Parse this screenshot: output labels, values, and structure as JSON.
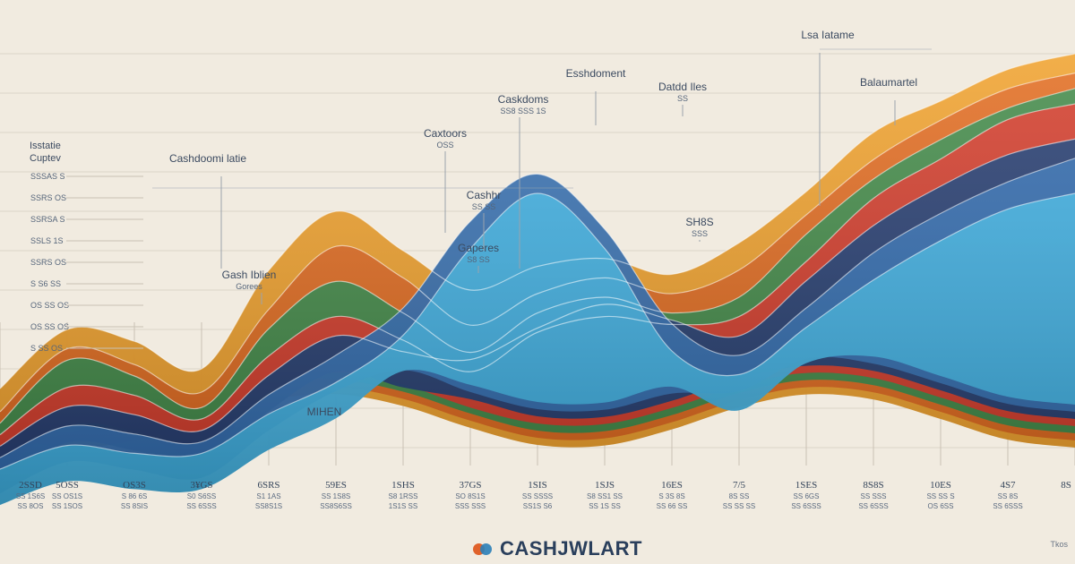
{
  "brand": {
    "name": "CASHJWLART",
    "accent_orange": "#e0622b",
    "accent_blue": "#2b7fb8"
  },
  "corner_note": "Tkos",
  "colors": {
    "background": "#f1ebe0",
    "orange": "#f0a02b",
    "orange_deep": "#e06b22",
    "green": "#3f8a4a",
    "red": "#d43a2a",
    "navy": "#1f3b6e",
    "blue": "#2e67a8",
    "sky": "#3aa6d6"
  },
  "left_labels": {
    "heading": "Isstatie",
    "subheading": "Cuptev",
    "rows": [
      "SSSAS S",
      "SSRS OS",
      "SSRSA S",
      "SSLS 1S",
      "SSRS OS",
      "S S6 SS",
      "OS SS OS",
      "OS SS OS",
      "S SS OS"
    ]
  },
  "annotations": [
    {
      "title": "Cashdoomi latie",
      "sub": ""
    },
    {
      "title": "Gash Iblien",
      "sub": "Gorees"
    },
    {
      "title": "Caskdoms",
      "sub": "SS8 SSS 1S"
    },
    {
      "title": "Caxtoors",
      "sub": "OSS"
    },
    {
      "title": "Cashhr",
      "sub": "SS SS"
    },
    {
      "title": "Gaperes",
      "sub": "S8 SS"
    },
    {
      "title": "Esshdoment",
      "sub": ""
    },
    {
      "title": "Datdd Iles",
      "sub": "SS"
    },
    {
      "title": "SH8S",
      "sub": "SSS"
    },
    {
      "title": "Lsa Iatame",
      "sub": ""
    },
    {
      "title": "Balaumartel",
      "sub": ""
    },
    {
      "title": "MIHEN",
      "sub": ""
    }
  ],
  "chart_data": {
    "type": "area",
    "title": "",
    "xlabel": "",
    "ylabel": "",
    "categories": [
      "2SSD",
      "5OSS",
      "OS3S",
      "3¥GS",
      "6SRS",
      "59ES",
      "1SHS",
      "37GS",
      "1SIS",
      "1SJS",
      "16ES",
      "7/5",
      "1SES",
      "8S8S",
      "10ES",
      "4S7",
      "8S"
    ],
    "category_sub1": [
      "SS 1S6S",
      "SS OS1S",
      "S 86 6S",
      "S0 S6SS",
      "S1 1AS",
      "SS 1S8S",
      "S8 1RSS",
      "SO 8S1S",
      "SS SSSS",
      "S8 SS1 SS",
      "S 3S 8S",
      "8S SS",
      "SS 6GS",
      "SS SSS",
      "SS SS S",
      "SS 8S",
      ""
    ],
    "category_sub2": [
      "SS 8OS",
      "SS 1SOS",
      "SS 8SIS",
      "SS 6SSS",
      "SS8S1S",
      "SS8S6SS",
      "1S1S SS",
      "SSS SSS",
      "SS1S S6",
      "SS 1S SS",
      "SS 66 SS",
      "SS SS SS",
      "SS 6SSS",
      "SS 6SSS",
      "OS 6SS",
      "SS 6SSS",
      ""
    ],
    "series": [
      {
        "name": "",
        "color": "#f0a02b",
        "values": [
          15,
          30,
          27,
          20,
          45,
          60,
          50,
          40,
          46,
          48,
          44,
          52,
          65,
          80,
          88,
          96,
          100
        ]
      },
      {
        "name": "",
        "color": "#e06b22",
        "values": [
          10,
          26,
          22,
          15,
          36,
          52,
          44,
          32,
          40,
          44,
          40,
          46,
          60,
          74,
          84,
          92,
          96
        ]
      },
      {
        "name": "",
        "color": "#3f8a4a",
        "values": [
          8,
          24,
          20,
          12,
          32,
          44,
          36,
          26,
          36,
          40,
          36,
          40,
          56,
          70,
          80,
          88,
          93
        ]
      },
      {
        "name": "",
        "color": "#d43a2a",
        "values": [
          6,
          18,
          16,
          10,
          26,
          36,
          30,
          22,
          32,
          36,
          34,
          36,
          50,
          66,
          76,
          86,
          90
        ]
      },
      {
        "name": "",
        "color": "#1f3b6e",
        "values": [
          4,
          14,
          12,
          8,
          22,
          32,
          28,
          26,
          34,
          40,
          36,
          32,
          46,
          60,
          70,
          78,
          82
        ]
      },
      {
        "name": "",
        "color": "#2e67a8",
        "values": [
          2,
          10,
          8,
          6,
          18,
          28,
          40,
          62,
          74,
          60,
          36,
          28,
          40,
          54,
          64,
          72,
          78
        ]
      },
      {
        "name": "",
        "color": "#3aa6d6",
        "values": [
          0,
          6,
          4,
          4,
          14,
          22,
          34,
          56,
          70,
          56,
          30,
          24,
          36,
          48,
          58,
          66,
          70
        ]
      }
    ],
    "ylim": [
      0,
      100
    ],
    "grid": true,
    "legend": "none"
  }
}
